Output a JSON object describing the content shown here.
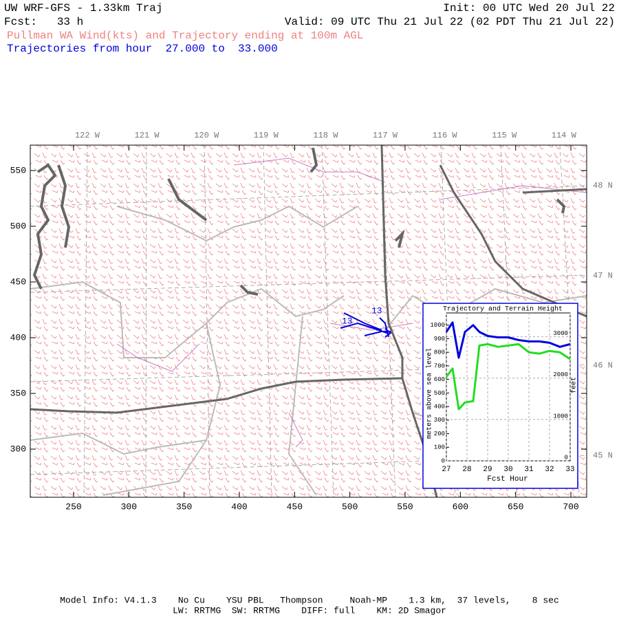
{
  "header": {
    "title": "UW WRF-GFS - 1.33km Traj",
    "init": "Init: 00 UTC Wed 20 Jul 22",
    "forecast": "Fcst:   33 h",
    "valid": "Valid: 09 UTC Thu 21 Jul 22 (02 PDT Thu 21 Jul 22)",
    "subtitle": "Pullman WA Wind(kts) and Trajectory ending at 100m AGL",
    "trajectory_range": "Trajectories from hour  27.000 to  33.000"
  },
  "map": {
    "xlim": [
      210.8,
      714.3
    ],
    "ylim": [
      256.8,
      572.8
    ],
    "xticks": [
      250,
      300,
      350,
      400,
      450,
      500,
      550,
      600,
      650,
      700
    ],
    "yticks": [
      300,
      350,
      400,
      450,
      500,
      550
    ],
    "lon_labels": [
      "122 W",
      "121 W",
      "120 W",
      "119 W",
      "118 W",
      "117 W",
      "116 W",
      "115 W",
      "114 W"
    ],
    "lat_labels": [
      "48 N",
      "47 N",
      "46 N",
      "45 N"
    ],
    "trajectory_labels": [
      "13",
      "13"
    ]
  },
  "chart_data": {
    "type": "line",
    "title": "Trajectory and Terrain Height",
    "x_label": "Fcst Hour",
    "y_label": "meters above sea level",
    "y2_label": "feet",
    "x": [
      27.0,
      27.3,
      27.6,
      27.9,
      28.3,
      28.6,
      29.0,
      29.5,
      30.0,
      30.5,
      31.0,
      31.5,
      32.0,
      32.5,
      33.0
    ],
    "series": [
      {
        "color": "#0000dd",
        "values": [
          950,
          1020,
          760,
          950,
          1000,
          950,
          920,
          910,
          910,
          890,
          880,
          880,
          870,
          840,
          860
        ]
      },
      {
        "color": "#22dd22",
        "values": [
          620,
          680,
          380,
          430,
          440,
          850,
          860,
          840,
          850,
          860,
          800,
          790,
          810,
          800,
          750
        ]
      }
    ],
    "xlim": [
      27,
      33
    ],
    "ylim": [
      0,
      1090
    ],
    "y2lim": [
      0,
      3576
    ],
    "xticks": [
      27,
      28,
      29,
      30,
      31,
      32,
      33
    ],
    "yticks": [
      0,
      100,
      200,
      300,
      400,
      500,
      600,
      700,
      800,
      900,
      1000
    ],
    "y2ticks": [
      0,
      1000,
      2000,
      3000
    ],
    "grid": true
  },
  "footer": {
    "line1": "Model Info: V4.1.3    No Cu    YSU PBL   Thompson     Noah-MP    1.3 km,  37 levels,    8 sec",
    "line2": "LW: RRTMG  SW: RRTMG    DIFF: full    KM: 2D Smagor"
  }
}
